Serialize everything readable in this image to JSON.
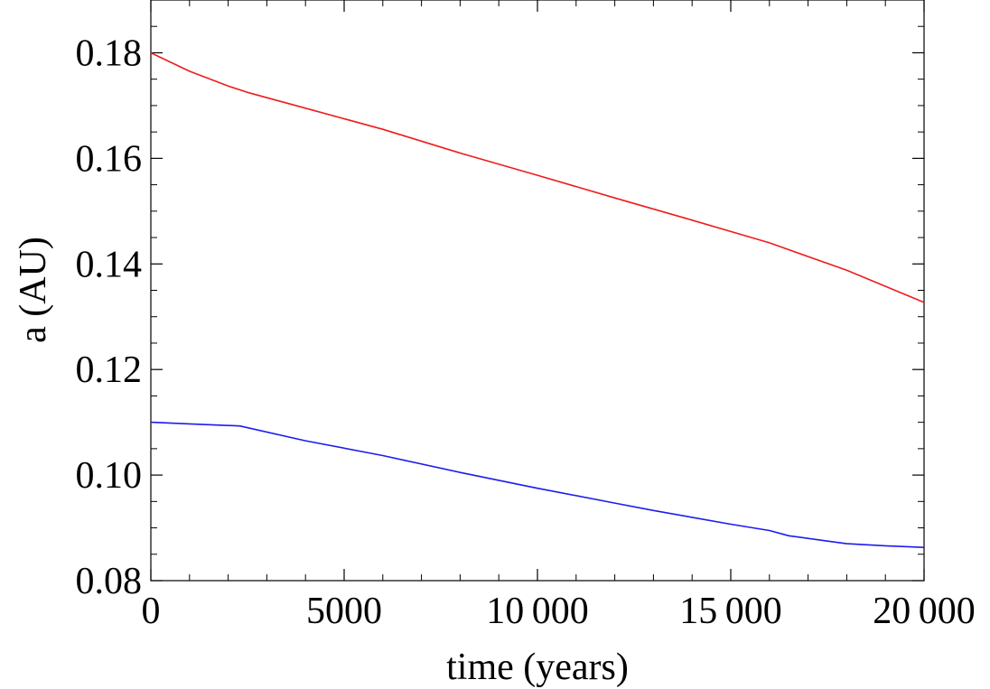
{
  "chart_data": {
    "type": "line",
    "title": "",
    "xlabel": "time (years)",
    "ylabel": "a (AU)",
    "xlim": [
      0,
      20000
    ],
    "ylim": [
      0.08,
      0.19
    ],
    "x_ticks": [
      {
        "value": 0,
        "label": "0"
      },
      {
        "value": 5000,
        "label": "5000"
      },
      {
        "value": 10000,
        "label": "10 000"
      },
      {
        "value": 15000,
        "label": "15 000"
      },
      {
        "value": 20000,
        "label": "20 000"
      }
    ],
    "y_ticks": [
      {
        "value": 0.08,
        "label": "0.08"
      },
      {
        "value": 0.1,
        "label": "0.10"
      },
      {
        "value": 0.12,
        "label": "0.12"
      },
      {
        "value": 0.14,
        "label": "0.14"
      },
      {
        "value": 0.16,
        "label": "0.16"
      },
      {
        "value": 0.18,
        "label": "0.18"
      }
    ],
    "x_minor_step": 1000,
    "y_minor_step": 0.005,
    "grid": false,
    "series": [
      {
        "color": "#ee1c1c",
        "x": [
          0,
          1000,
          2000,
          2500,
          4000,
          6000,
          8000,
          10000,
          12000,
          14000,
          16000,
          18000,
          20000
        ],
        "y": [
          0.18,
          0.1765,
          0.1737,
          0.1725,
          0.1695,
          0.1655,
          0.161,
          0.1568,
          0.1525,
          0.1483,
          0.144,
          0.1388,
          0.1327
        ]
      },
      {
        "color": "#1c1cee",
        "x": [
          0,
          1000,
          2300,
          4000,
          6000,
          8000,
          10000,
          12000,
          13000,
          14000,
          15000,
          16000,
          16500,
          17500,
          18000,
          19000,
          20000
        ],
        "y": [
          0.11,
          0.1097,
          0.1093,
          0.1065,
          0.1037,
          0.1005,
          0.0975,
          0.0947,
          0.0933,
          0.092,
          0.0907,
          0.0895,
          0.0885,
          0.0875,
          0.087,
          0.0866,
          0.0863
        ]
      }
    ]
  }
}
